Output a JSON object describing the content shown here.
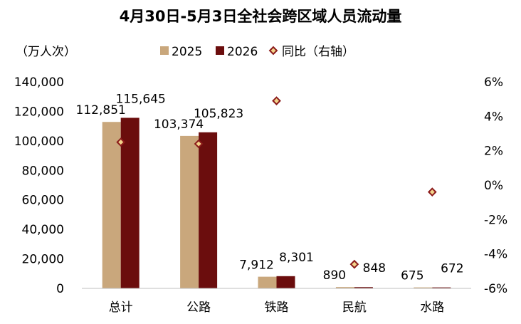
{
  "chart_data": {
    "type": "bar",
    "title": "4月30日-5月3日全社会跨区域人员流动量",
    "ylabel": "（万人次）",
    "categories": [
      "总计",
      "公路",
      "铁路",
      "民航",
      "水路"
    ],
    "series": [
      {
        "name": "2025",
        "values": [
          112851,
          103374,
          7912,
          890,
          675
        ],
        "labels": [
          "112,851",
          "103,374",
          "7,912",
          "890",
          "675"
        ],
        "color": "#C9A77C"
      },
      {
        "name": "2026",
        "values": [
          115645,
          105823,
          8301,
          848,
          672
        ],
        "labels": [
          "115,645",
          "105,823",
          "8,301",
          "848",
          "672"
        ],
        "color": "#6B0D0D"
      }
    ],
    "yoy": {
      "name": "同比（右轴）",
      "values": [
        2.5,
        2.4,
        4.9,
        -4.6,
        -0.4
      ],
      "color": "#8B1A1A",
      "fill": "#F2D38A"
    },
    "ylim": [
      0,
      140000
    ],
    "yticks": [
      "0",
      "20,000",
      "40,000",
      "60,000",
      "80,000",
      "100,000",
      "120,000",
      "140,000"
    ],
    "y2lim": [
      -6,
      6
    ],
    "y2ticks": [
      "-6%",
      "-4%",
      "-2%",
      "0%",
      "2%",
      "4%",
      "6%"
    ],
    "grid": false,
    "legend_position": "top"
  }
}
